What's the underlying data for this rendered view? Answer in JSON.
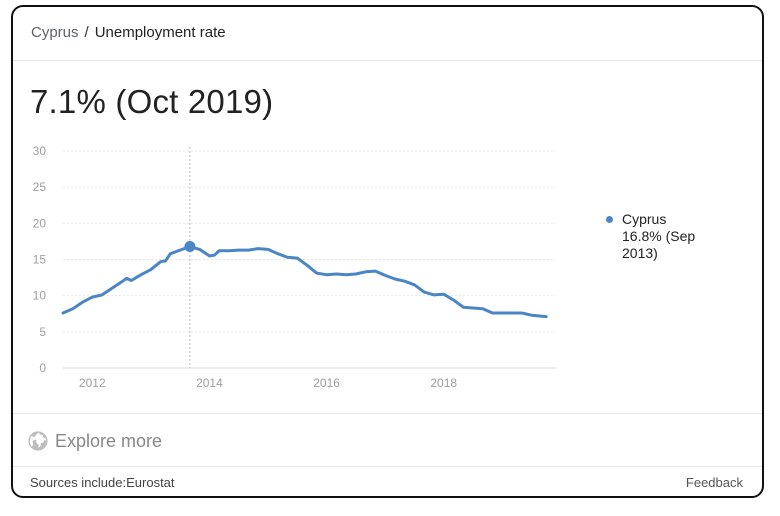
{
  "breadcrumb": {
    "country": "Cyprus",
    "separator": "/",
    "topic": "Unemployment rate"
  },
  "headline": "7.1% (Oct 2019)",
  "legend": {
    "series_name": "Cyprus",
    "value_line1": "16.8% (Sep",
    "value_line2": "2013)"
  },
  "explore": {
    "label": "Explore more",
    "icon": "globe-icon"
  },
  "footer": {
    "sources": "Sources include:Eurostat",
    "feedback": "Feedback"
  },
  "colors": {
    "series": "#4a86c5",
    "grid": "#e8e8e8",
    "axis_text": "#9e9e9e"
  },
  "chart_data": {
    "type": "line",
    "title": "",
    "xlabel": "",
    "ylabel": "",
    "ylim": [
      0,
      30
    ],
    "xlim": [
      "2011-07",
      "2019-12"
    ],
    "y_ticks": [
      0,
      5,
      10,
      15,
      20,
      25,
      30
    ],
    "x_tick_labels": [
      "2012",
      "2014",
      "2016",
      "2018"
    ],
    "grid": true,
    "legend_position": "right",
    "highlight": {
      "date": "2013-09",
      "value": 16.8
    },
    "series": [
      {
        "name": "Cyprus",
        "points": [
          [
            "2011-07",
            7.6
          ],
          [
            "2011-09",
            8.2
          ],
          [
            "2011-11",
            9.1
          ],
          [
            "2012-01",
            9.8
          ],
          [
            "2012-03",
            10.1
          ],
          [
            "2012-05",
            11.0
          ],
          [
            "2012-07",
            11.9
          ],
          [
            "2012-08",
            12.4
          ],
          [
            "2012-09",
            12.1
          ],
          [
            "2012-11",
            12.9
          ],
          [
            "2013-01",
            13.6
          ],
          [
            "2013-03",
            14.7
          ],
          [
            "2013-04",
            14.8
          ],
          [
            "2013-05",
            15.8
          ],
          [
            "2013-07",
            16.3
          ],
          [
            "2013-09",
            16.8
          ],
          [
            "2013-11",
            16.4
          ],
          [
            "2014-01",
            15.5
          ],
          [
            "2014-02",
            15.6
          ],
          [
            "2014-03",
            16.2
          ],
          [
            "2014-05",
            16.2
          ],
          [
            "2014-07",
            16.3
          ],
          [
            "2014-09",
            16.3
          ],
          [
            "2014-11",
            16.5
          ],
          [
            "2015-01",
            16.4
          ],
          [
            "2015-03",
            15.8
          ],
          [
            "2015-05",
            15.3
          ],
          [
            "2015-07",
            15.2
          ],
          [
            "2015-09",
            14.2
          ],
          [
            "2015-11",
            13.1
          ],
          [
            "2016-01",
            12.9
          ],
          [
            "2016-03",
            13.0
          ],
          [
            "2016-05",
            12.9
          ],
          [
            "2016-07",
            13.0
          ],
          [
            "2016-09",
            13.3
          ],
          [
            "2016-11",
            13.4
          ],
          [
            "2017-01",
            12.8
          ],
          [
            "2017-03",
            12.3
          ],
          [
            "2017-05",
            12.0
          ],
          [
            "2017-07",
            11.5
          ],
          [
            "2017-09",
            10.5
          ],
          [
            "2017-11",
            10.1
          ],
          [
            "2018-01",
            10.2
          ],
          [
            "2018-03",
            9.4
          ],
          [
            "2018-05",
            8.4
          ],
          [
            "2018-07",
            8.3
          ],
          [
            "2018-09",
            8.2
          ],
          [
            "2018-11",
            7.6
          ],
          [
            "2019-01",
            7.6
          ],
          [
            "2019-03",
            7.6
          ],
          [
            "2019-05",
            7.6
          ],
          [
            "2019-07",
            7.3
          ],
          [
            "2019-10",
            7.1
          ]
        ]
      }
    ]
  }
}
